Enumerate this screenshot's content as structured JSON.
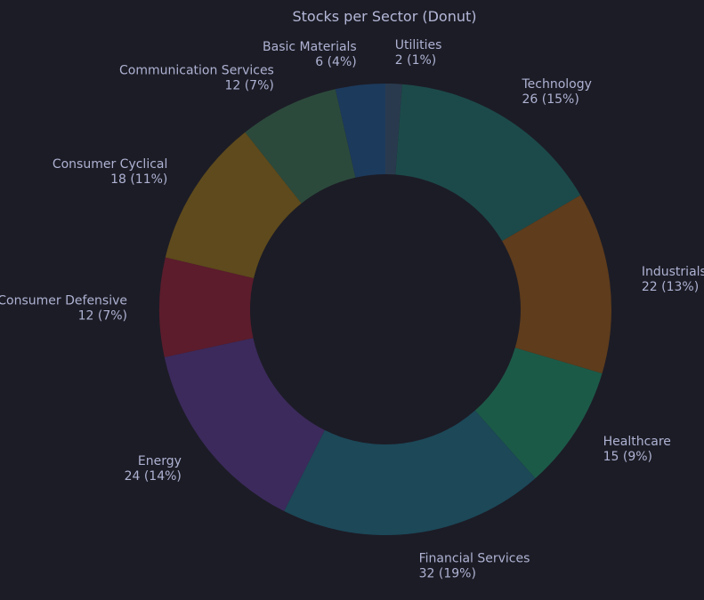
{
  "chart_data": {
    "type": "pie",
    "subtype": "donut",
    "title": "Stocks per Sector (Donut)",
    "start": "top, clockwise",
    "slices": [
      {
        "name": "Utilities",
        "value": 2,
        "pct_label": "2 (1%)",
        "color": "#2a3a4e"
      },
      {
        "name": "Technology",
        "value": 26,
        "pct_label": "26 (15%)",
        "color": "#1c4a4a"
      },
      {
        "name": "Industrials",
        "value": 22,
        "pct_label": "22 (13%)",
        "color": "#5e3c1c"
      },
      {
        "name": "Healthcare",
        "value": 15,
        "pct_label": "15 (9%)",
        "color": "#1c5a48"
      },
      {
        "name": "Financial Services",
        "value": 32,
        "pct_label": "32 (19%)",
        "color": "#1c4858"
      },
      {
        "name": "Energy",
        "value": 24,
        "pct_label": "24 (14%)",
        "color": "#3c2a5c"
      },
      {
        "name": "Consumer Defensive",
        "value": 12,
        "pct_label": "12 (7%)",
        "color": "#5c1c2c"
      },
      {
        "name": "Consumer Cyclical",
        "value": 18,
        "pct_label": "18 (11%)",
        "color": "#5e4a1c"
      },
      {
        "name": "Communication Services",
        "value": 12,
        "pct_label": "12 (7%)",
        "color": "#2c4a3c"
      },
      {
        "name": "Basic Materials",
        "value": 6,
        "pct_label": "6 (4%)",
        "color": "#1c3a5c"
      }
    ]
  }
}
